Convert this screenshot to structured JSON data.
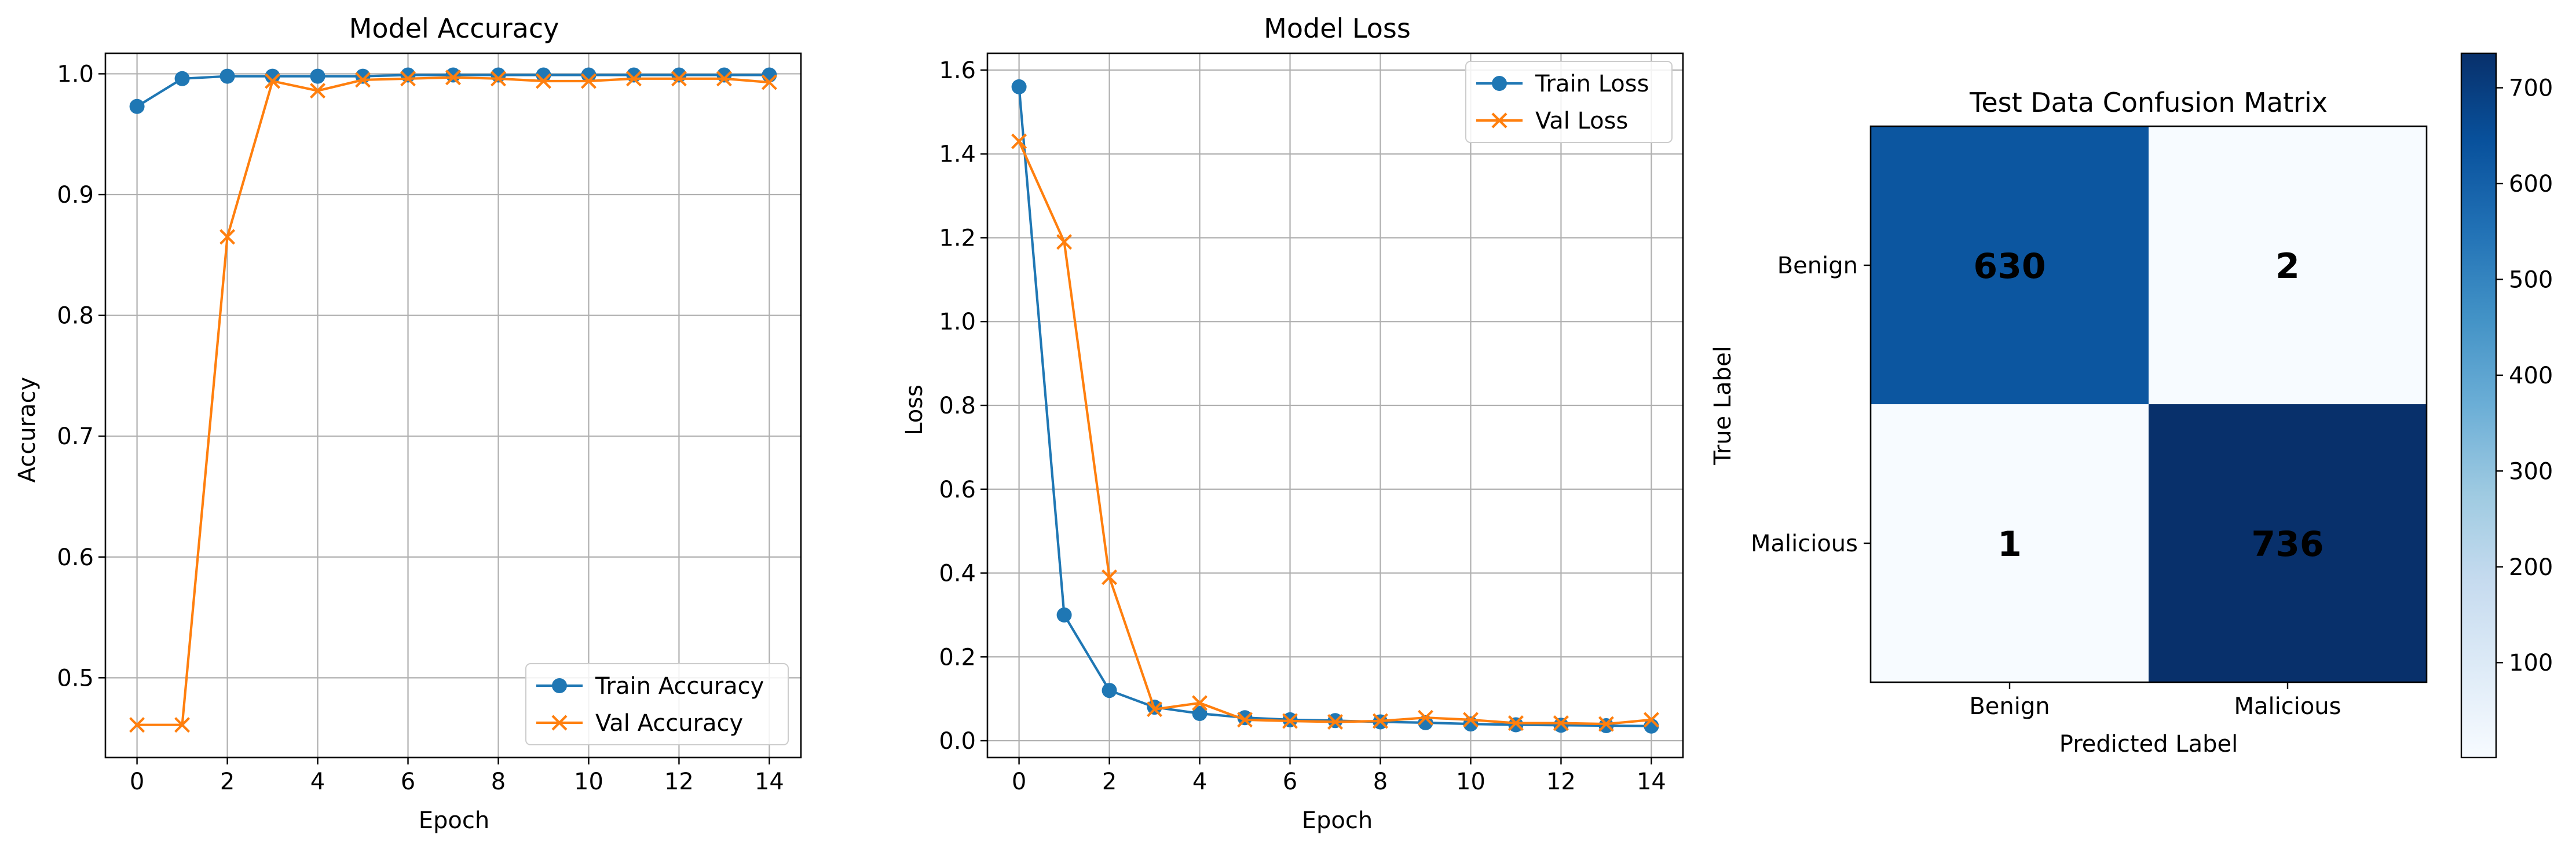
{
  "chart_data": [
    {
      "type": "line",
      "title": "Model Accuracy",
      "xlabel": "Epoch",
      "ylabel": "Accuracy",
      "xlim": [
        -0.7,
        14.7
      ],
      "ylim": [
        0.434,
        1.017
      ],
      "xticks": [
        0,
        2,
        4,
        6,
        8,
        10,
        12,
        14
      ],
      "xtick_labels": [
        "0",
        "2",
        "4",
        "6",
        "8",
        "10",
        "12",
        "14"
      ],
      "yticks": [
        0.5,
        0.6,
        0.7,
        0.8,
        0.9,
        1.0
      ],
      "ytick_labels": [
        "0.5",
        "0.6",
        "0.7",
        "0.8",
        "0.9",
        "1.0"
      ],
      "grid": true,
      "legend_position": "lower-right",
      "x": [
        0,
        1,
        2,
        3,
        4,
        5,
        6,
        7,
        8,
        9,
        10,
        11,
        12,
        13,
        14
      ],
      "series": [
        {
          "name": "Train Accuracy",
          "color": "#1f77b4",
          "marker": "circle",
          "values": [
            0.973,
            0.996,
            0.998,
            0.998,
            0.998,
            0.998,
            0.999,
            0.999,
            0.999,
            0.999,
            0.999,
            0.999,
            0.999,
            0.999,
            0.999
          ]
        },
        {
          "name": "Val Accuracy",
          "color": "#ff7f0e",
          "marker": "x",
          "values": [
            0.461,
            0.461,
            0.865,
            0.994,
            0.986,
            0.995,
            0.996,
            0.997,
            0.996,
            0.994,
            0.994,
            0.996,
            0.996,
            0.996,
            0.993
          ]
        }
      ]
    },
    {
      "type": "line",
      "title": "Model Loss",
      "xlabel": "Epoch",
      "ylabel": "Loss",
      "xlim": [
        -0.7,
        14.7
      ],
      "ylim": [
        -0.04,
        1.64
      ],
      "xticks": [
        0,
        2,
        4,
        6,
        8,
        10,
        12,
        14
      ],
      "xtick_labels": [
        "0",
        "2",
        "4",
        "6",
        "8",
        "10",
        "12",
        "14"
      ],
      "yticks": [
        0.0,
        0.2,
        0.4,
        0.6,
        0.8,
        1.0,
        1.2,
        1.4,
        1.6
      ],
      "ytick_labels": [
        "0.0",
        "0.2",
        "0.4",
        "0.6",
        "0.8",
        "1.0",
        "1.2",
        "1.4",
        "1.6"
      ],
      "grid": true,
      "legend_position": "upper-right",
      "x": [
        0,
        1,
        2,
        3,
        4,
        5,
        6,
        7,
        8,
        9,
        10,
        11,
        12,
        13,
        14
      ],
      "series": [
        {
          "name": "Train Loss",
          "color": "#1f77b4",
          "marker": "circle",
          "values": [
            1.56,
            0.3,
            0.12,
            0.08,
            0.065,
            0.055,
            0.05,
            0.048,
            0.045,
            0.043,
            0.04,
            0.038,
            0.037,
            0.036,
            0.035
          ]
        },
        {
          "name": "Val Loss",
          "color": "#ff7f0e",
          "marker": "x",
          "values": [
            1.43,
            1.19,
            0.39,
            0.075,
            0.09,
            0.05,
            0.047,
            0.045,
            0.047,
            0.055,
            0.05,
            0.042,
            0.042,
            0.04,
            0.05
          ]
        }
      ]
    },
    {
      "type": "heatmap",
      "title": "Test Data Confusion Matrix",
      "xlabel": "Predicted Label",
      "ylabel": "True Label",
      "x_categories": [
        "Benign",
        "Malicious"
      ],
      "y_categories": [
        "Benign",
        "Malicious"
      ],
      "matrix": [
        [
          630,
          2
        ],
        [
          1,
          736
        ]
      ],
      "colormap": "Blues",
      "vmin": 1,
      "vmax": 736,
      "colorbar_ticks": [
        100,
        200,
        300,
        400,
        500,
        600,
        700
      ],
      "colorbar_tick_labels": [
        "100",
        "200",
        "300",
        "400",
        "500",
        "600",
        "700"
      ]
    }
  ]
}
